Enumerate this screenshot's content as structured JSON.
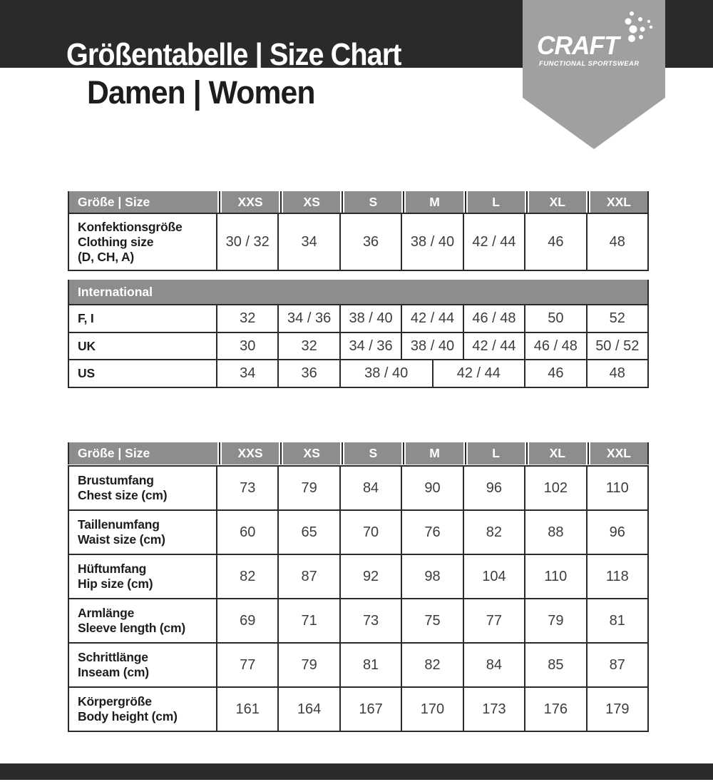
{
  "header": {
    "title": "Größentabelle | Size Chart",
    "subtitle": "Damen | Women",
    "brand": {
      "name": "CRAFT",
      "tagline": "FUNCTIONAL SPORTSWEAR",
      "dots_icon": "craft-snowflake-dots"
    }
  },
  "colors": {
    "bar_black": "#2b2a29",
    "ribbon_gray": "#a0a0a0",
    "table_header_gray": "#8d8d8d",
    "label_text": "#1d1d1b",
    "value_text": "#3d3d3d"
  },
  "size_columns": [
    "XXS",
    "XS",
    "S",
    "M",
    "L",
    "XL",
    "XXL"
  ],
  "table_conversion": {
    "header_label": "Größe | Size",
    "clothing_row": {
      "label_lines": [
        "Konfektionsgröße",
        "Clothing size",
        "(D, CH, A)"
      ],
      "values": [
        "30 / 32",
        "34",
        "36",
        "38 / 40",
        "42 / 44",
        "46",
        "48"
      ]
    },
    "section_label": "International",
    "rows": [
      {
        "label": "F, I",
        "values": [
          "32",
          "34 / 36",
          "38 / 40",
          "42 / 44",
          "46 / 48",
          "50",
          "52"
        ]
      },
      {
        "label": "UK",
        "values": [
          "30",
          "32",
          "34 / 36",
          "38 / 40",
          "42 / 44",
          "46 / 48",
          "50 / 52"
        ]
      },
      {
        "label": "US",
        "values": [
          "34",
          "36",
          "38 / 40",
          "42 / 44",
          "46",
          "48"
        ],
        "spans": [
          2,
          2,
          3,
          3,
          2,
          2
        ]
      }
    ]
  },
  "table_measurements": {
    "header_label": "Größe | Size",
    "rows": [
      {
        "label_lines": [
          "Brustumfang",
          "Chest size (cm)"
        ],
        "values": [
          "73",
          "79",
          "84",
          "90",
          "96",
          "102",
          "110"
        ]
      },
      {
        "label_lines": [
          "Taillenumfang",
          "Waist size (cm)"
        ],
        "values": [
          "60",
          "65",
          "70",
          "76",
          "82",
          "88",
          "96"
        ]
      },
      {
        "label_lines": [
          "Hüftumfang",
          "Hip size (cm)"
        ],
        "values": [
          "82",
          "87",
          "92",
          "98",
          "104",
          "110",
          "118"
        ]
      },
      {
        "label_lines": [
          "Armlänge",
          "Sleeve length (cm)"
        ],
        "values": [
          "69",
          "71",
          "73",
          "75",
          "77",
          "79",
          "81"
        ]
      },
      {
        "label_lines": [
          "Schrittlänge",
          "Inseam (cm)"
        ],
        "values": [
          "77",
          "79",
          "81",
          "82",
          "84",
          "85",
          "87"
        ]
      },
      {
        "label_lines": [
          "Körpergröße",
          "Body height (cm)"
        ],
        "values": [
          "161",
          "164",
          "167",
          "170",
          "173",
          "176",
          "179"
        ]
      }
    ]
  }
}
